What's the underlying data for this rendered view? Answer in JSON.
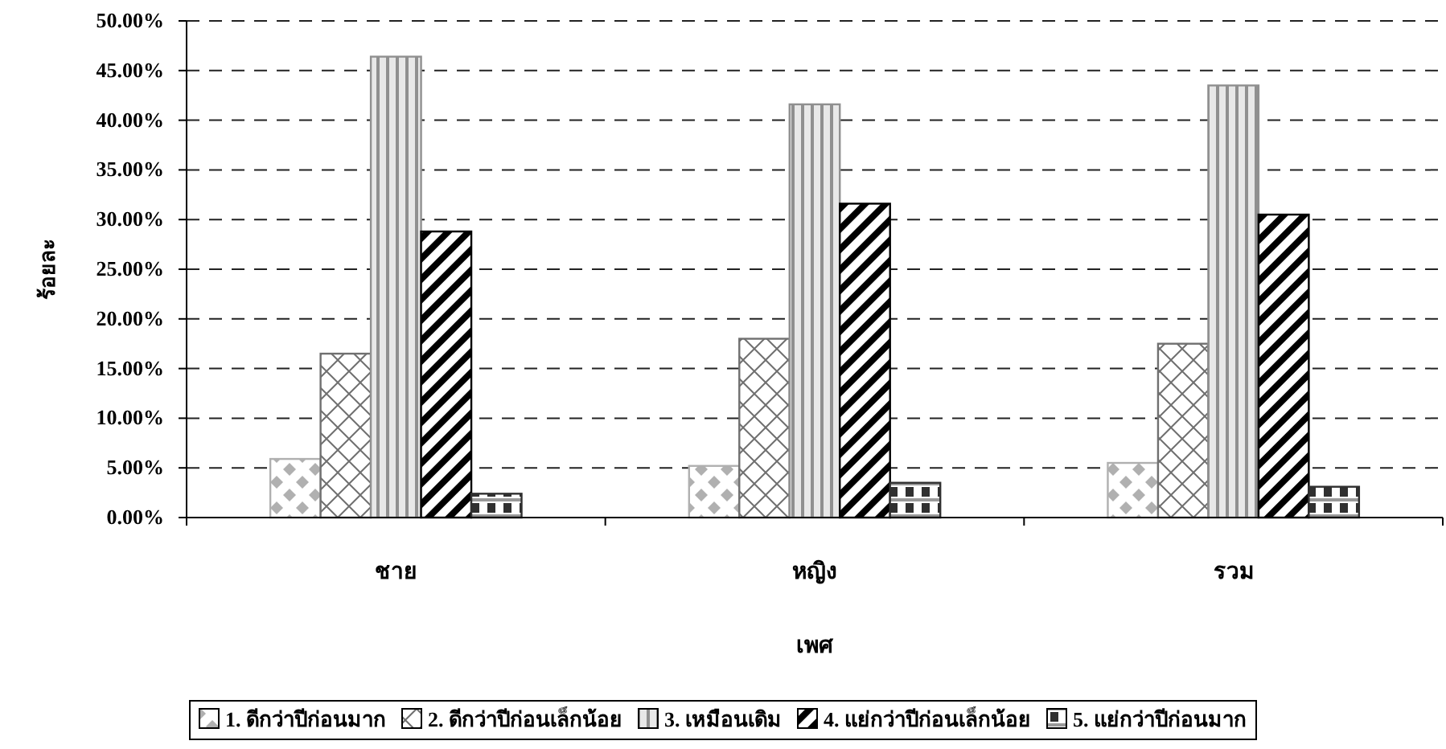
{
  "chart_data": {
    "type": "bar",
    "xlabel": "เพศ",
    "ylabel": "ร้อยละ",
    "categories": [
      "ชาย",
      "หญิง",
      "รวม"
    ],
    "series": [
      {
        "name": "1. ดีกว่าปีก่อนมาก",
        "color": "#b0b0b0",
        "values": [
          5.9,
          5.2,
          5.5
        ]
      },
      {
        "name": "2. ดีกว่าปีก่อนเล็กน้อย",
        "color": "#707070",
        "values": [
          16.5,
          18.0,
          17.5
        ]
      },
      {
        "name": "3. เหมือนเดิม",
        "color": "#909090",
        "values": [
          46.4,
          41.6,
          43.5
        ]
      },
      {
        "name": "4. แย่กว่าปีก่อนเล็กน้อย",
        "color": "#000000",
        "values": [
          28.8,
          31.6,
          30.5
        ]
      },
      {
        "name": "5. แย่กว่าปีก่อนมาก",
        "color": "#303030",
        "values": [
          2.4,
          3.5,
          3.1
        ]
      }
    ],
    "ylim": [
      0,
      50
    ],
    "yticks": [
      {
        "value": 0,
        "label": "0.00%"
      },
      {
        "value": 5,
        "label": "5.00%"
      },
      {
        "value": 10,
        "label": "10.00%"
      },
      {
        "value": 15,
        "label": "15.00%"
      },
      {
        "value": 20,
        "label": "20.00%"
      },
      {
        "value": 25,
        "label": "25.00%"
      },
      {
        "value": 30,
        "label": "30.00%"
      },
      {
        "value": 35,
        "label": "35.00%"
      },
      {
        "value": 40,
        "label": "40.00%"
      },
      {
        "value": 45,
        "label": "45.00%"
      },
      {
        "value": 50,
        "label": "50.00%"
      }
    ],
    "grid": "y",
    "legend": "bottom"
  }
}
